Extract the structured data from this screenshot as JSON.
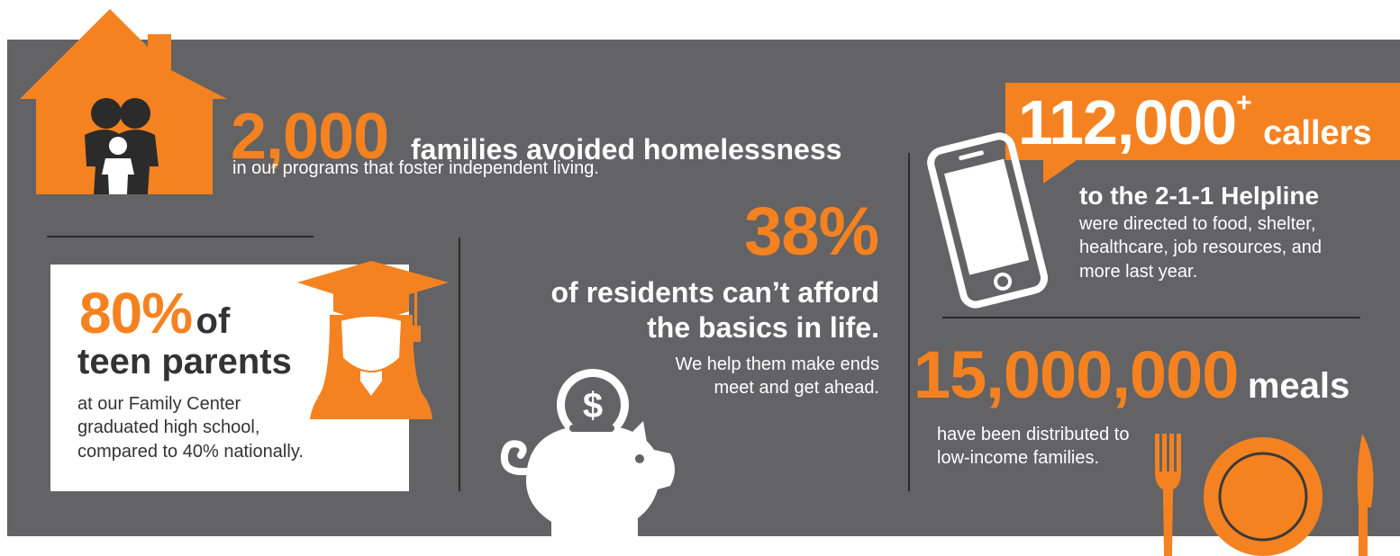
{
  "colors": {
    "accent": "#f58220",
    "panel": "#636365",
    "white": "#ffffff",
    "text_dark": "#333333"
  },
  "families": {
    "number": "2,000",
    "headline": "families avoided homelessness",
    "detail": "in our programs that foster independent living.",
    "icon": "house-family-icon"
  },
  "teen": {
    "number": "80%",
    "of": "of",
    "headline": "teen parents",
    "detail_lines": [
      "at our Family Center",
      "graduated high school,",
      "compared to 40% nationally."
    ],
    "icon": "graduate-icon"
  },
  "residents": {
    "number": "38%",
    "headline_lines": [
      "of residents can’t afford",
      "the basics in life."
    ],
    "detail_lines": [
      "We help them make ends",
      "meet and get ahead."
    ],
    "icon": "piggy-bank-icon",
    "coin_symbol": "$"
  },
  "callers": {
    "number": "112,000",
    "superscript": "+",
    "label": "callers",
    "headline": "to the 2-1-1 Helpline",
    "detail_lines": [
      "were directed to food, shelter,",
      "healthcare, job resources, and",
      "more last year."
    ],
    "icon": "smartphone-icon"
  },
  "meals": {
    "number": "15,000,000",
    "label": "meals",
    "detail_lines": [
      "have been distributed to",
      "low-income families."
    ],
    "icon": "plate-cutlery-icon"
  }
}
